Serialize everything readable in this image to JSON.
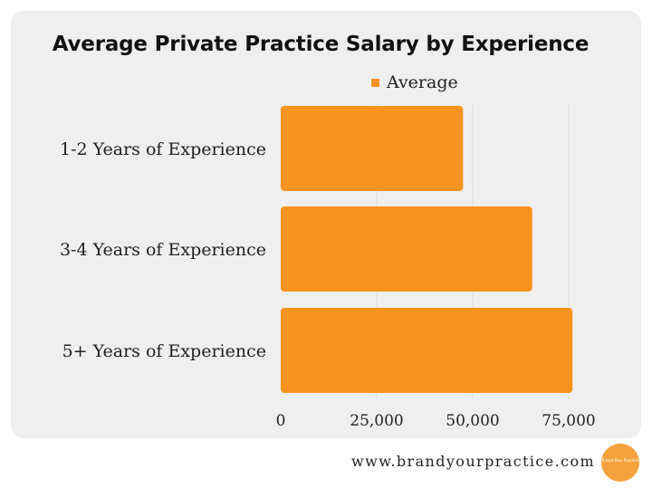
{
  "chart_data": {
    "type": "bar",
    "orientation": "horizontal",
    "title": "Average Private Practice Salary by Experience",
    "categories": [
      "1-2 Years of Experience",
      "3-4 Years of Experience",
      "5+ Years of Experience"
    ],
    "series": [
      {
        "name": "Average",
        "values": [
          47500,
          65500,
          76000
        ]
      }
    ],
    "xlim": [
      0,
      75000
    ],
    "x_ticks": [
      "0",
      "25,000",
      "50,000",
      "75,000"
    ],
    "x_tick_values": [
      0,
      25000,
      50000,
      75000
    ],
    "grid": "vertical",
    "legend": "top",
    "bar_color": "#f7931e"
  },
  "footer": {
    "url": "www.brandyourpractice.com",
    "logo_text": "Brand Your Practice"
  }
}
